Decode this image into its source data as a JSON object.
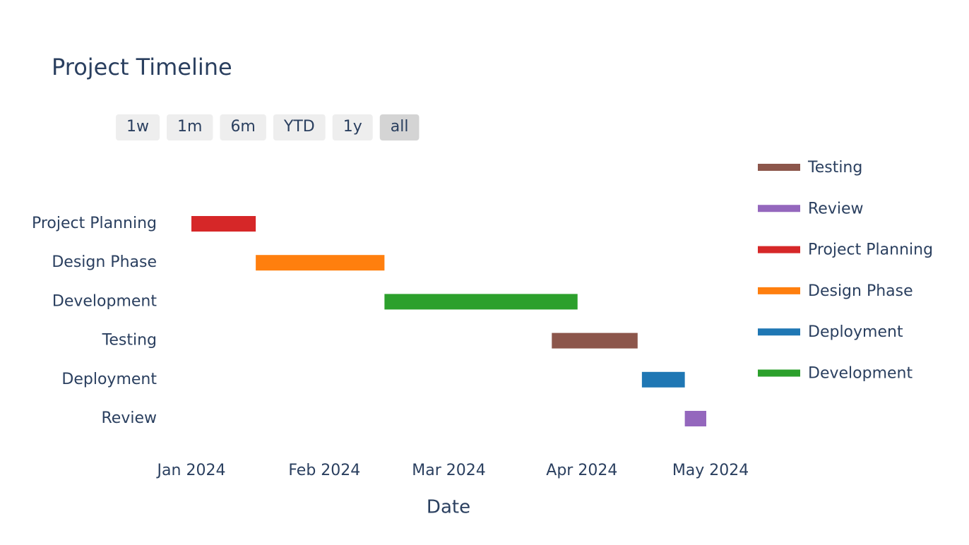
{
  "chart_data": {
    "type": "gantt",
    "title": "Project Timeline",
    "range_buttons": [
      "1w",
      "1m",
      "6m",
      "YTD",
      "1y",
      "all"
    ],
    "selected_button": "all",
    "categories": [
      "Project Planning",
      "Design Phase",
      "Development",
      "Testing",
      "Deployment",
      "Review"
    ],
    "series": [
      {
        "name": "Testing",
        "color": "#8c564b",
        "start": "2024-03-25",
        "end": "2024-04-14"
      },
      {
        "name": "Review",
        "color": "#9467bd",
        "start": "2024-04-25",
        "end": "2024-04-30"
      },
      {
        "name": "Project Planning",
        "color": "#d62728",
        "start": "2024-01-01",
        "end": "2024-01-16"
      },
      {
        "name": "Design Phase",
        "color": "#ff7f0e",
        "start": "2024-01-16",
        "end": "2024-02-15"
      },
      {
        "name": "Deployment",
        "color": "#1f77b4",
        "start": "2024-04-15",
        "end": "2024-04-25"
      },
      {
        "name": "Development",
        "color": "#2ca02c",
        "start": "2024-02-15",
        "end": "2024-03-31"
      }
    ],
    "xlim": [
      "2024-01-01",
      "2024-04-30"
    ],
    "xticks": [
      {
        "value": "2024-01-01",
        "label": "Jan 2024"
      },
      {
        "value": "2024-02-01",
        "label": "Feb 2024"
      },
      {
        "value": "2024-03-01",
        "label": "Mar 2024"
      },
      {
        "value": "2024-04-01",
        "label": "Apr 2024"
      },
      {
        "value": "2024-05-01",
        "label": "May 2024"
      }
    ],
    "xlabel": "Date"
  }
}
